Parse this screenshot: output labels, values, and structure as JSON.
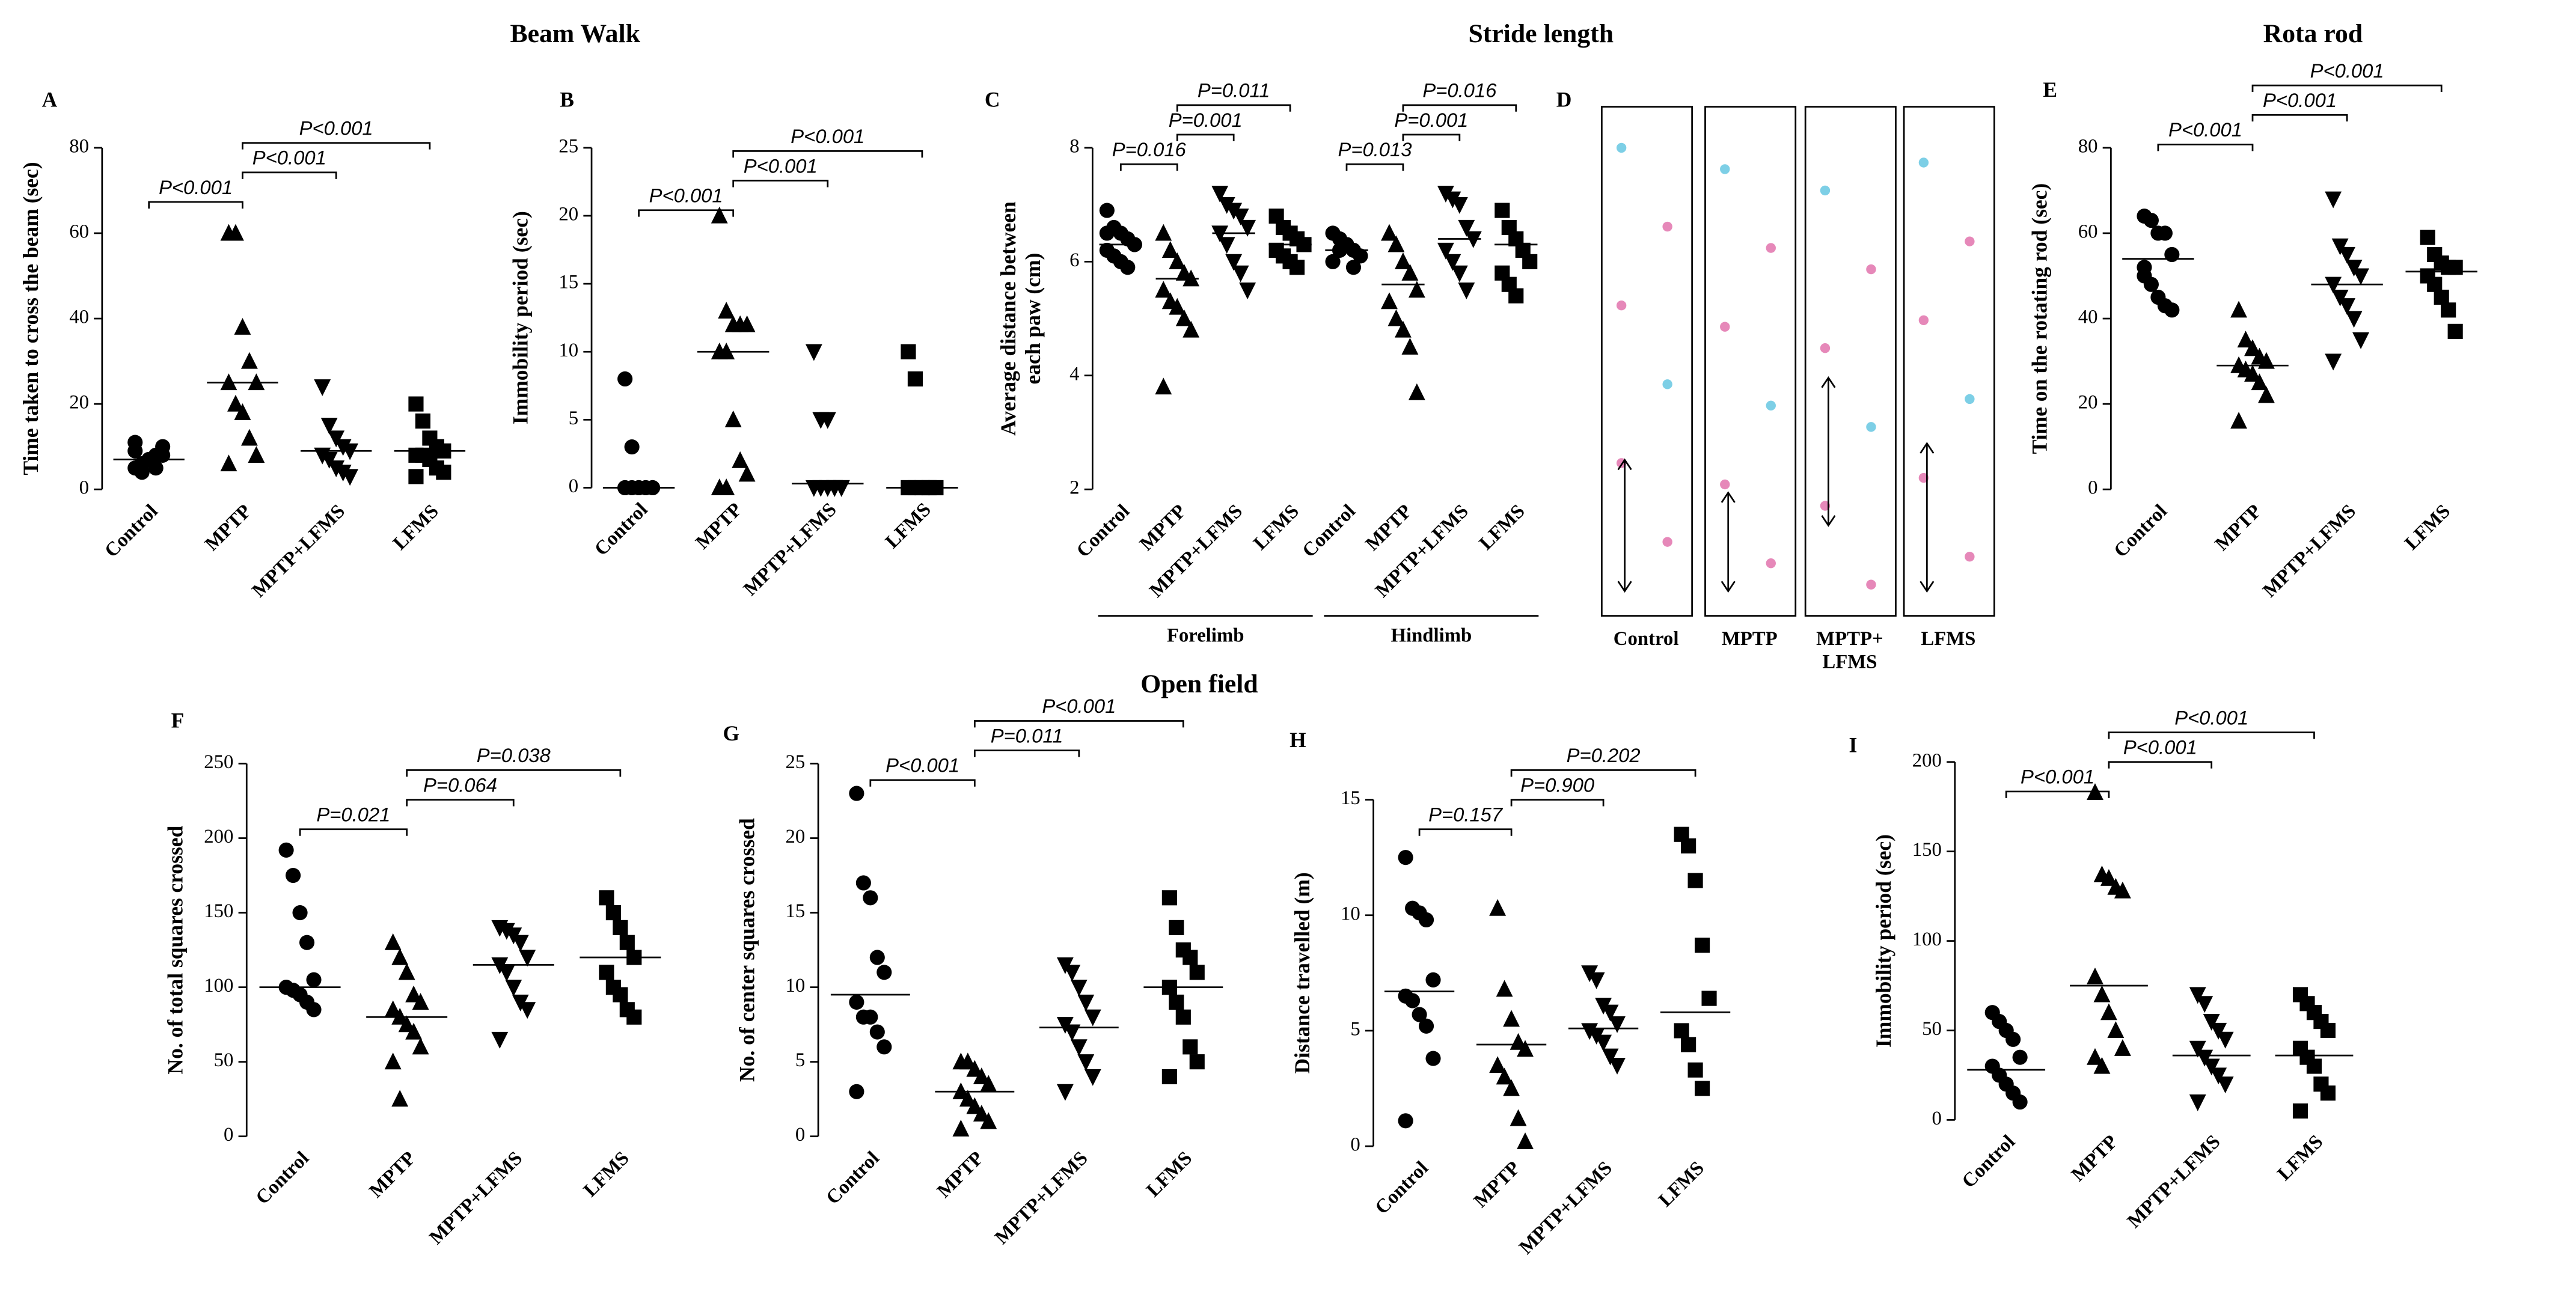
{
  "sections": [
    "Beam Walk",
    "Stride length",
    "Rota rod",
    "Open field"
  ],
  "footprints": {
    "panel": "D",
    "lanes": [
      [
        "Control"
      ],
      [
        "MPTP"
      ],
      [
        "MPTP+",
        "LFMS"
      ],
      [
        "LFMS"
      ]
    ]
  },
  "chart_data": [
    {
      "type": "dot",
      "panel": "A",
      "ylabel": [
        "Time taken to cross the beam (sec)"
      ],
      "categories": [
        "Control",
        "MPTP",
        "MPTP+LFMS",
        "LFMS"
      ],
      "markers": [
        "circle",
        "triangle",
        "triangle-down",
        "square"
      ],
      "ylim": [
        0,
        80
      ],
      "yticks": [
        0,
        20,
        40,
        60,
        80
      ],
      "points": [
        [
          5,
          6,
          7,
          8,
          10,
          9,
          6,
          7,
          5,
          8,
          11,
          4
        ],
        [
          60,
          60,
          38,
          30,
          25,
          25,
          20,
          18,
          12,
          8,
          6
        ],
        [
          24,
          15,
          12,
          10,
          9,
          8,
          7,
          5,
          4,
          3
        ],
        [
          20,
          16,
          12,
          10,
          9,
          8,
          8,
          7,
          5,
          4,
          3
        ]
      ],
      "means": [
        7,
        25,
        9,
        9
      ],
      "comparisons": [
        {
          "between": [
            0,
            1
          ],
          "label": "P<0.001"
        },
        {
          "between": [
            1,
            2
          ],
          "label": "P<0.001"
        },
        {
          "between": [
            1,
            3
          ],
          "label": "P<0.001"
        }
      ]
    },
    {
      "type": "dot",
      "panel": "B",
      "ylabel": [
        "Immobility period (sec)"
      ],
      "categories": [
        "Control",
        "MPTP",
        "MPTP+LFMS",
        "LFMS"
      ],
      "markers": [
        "circle",
        "triangle",
        "triangle-down",
        "square"
      ],
      "ylim": [
        0,
        25
      ],
      "yticks": [
        0,
        5,
        10,
        15,
        20,
        25
      ],
      "points": [
        [
          8,
          3,
          0,
          0,
          0,
          0,
          0,
          0,
          0,
          0,
          0
        ],
        [
          20,
          13,
          12,
          12,
          12,
          10,
          10,
          5,
          2,
          1,
          0,
          0
        ],
        [
          10,
          5,
          5,
          0,
          0,
          0,
          0,
          0,
          0,
          0
        ],
        [
          10,
          8,
          0,
          0,
          0,
          0,
          0,
          0,
          0,
          0,
          0
        ]
      ],
      "means": [
        0,
        10,
        0.3,
        0
      ],
      "comparisons": [
        {
          "between": [
            0,
            1
          ],
          "label": "P<0.001"
        },
        {
          "between": [
            1,
            2
          ],
          "label": "P<0.001"
        },
        {
          "between": [
            1,
            3
          ],
          "label": "P<0.001"
        }
      ]
    },
    {
      "type": "dot",
      "panel": "C",
      "ylabel": [
        "Average distance between",
        "each paw (cm)"
      ],
      "categories": [
        "Control",
        "MPTP",
        "MPTP+LFMS",
        "LFMS",
        "Control",
        "MPTP",
        "MPTP+LFMS",
        "LFMS"
      ],
      "category_groups": [
        "Forelimb",
        "Hindlimb"
      ],
      "markers": [
        "circle",
        "triangle",
        "triangle-down",
        "square",
        "circle",
        "triangle",
        "triangle-down",
        "square"
      ],
      "ylim": [
        2,
        8
      ],
      "yticks": [
        2,
        4,
        6,
        8
      ],
      "points": [
        [
          6.9,
          6.6,
          6.5,
          6.4,
          6.3,
          6.2,
          6.1,
          6.0,
          5.9,
          6.3,
          6.5
        ],
        [
          6.5,
          6.2,
          6.0,
          5.8,
          5.7,
          5.5,
          5.3,
          5.2,
          5.0,
          4.8,
          3.8
        ],
        [
          7.2,
          7.0,
          6.9,
          6.8,
          6.6,
          6.5,
          6.3,
          6.0,
          5.8,
          5.5
        ],
        [
          6.8,
          6.6,
          6.5,
          6.4,
          6.3,
          6.2,
          6.1,
          6.0,
          5.9
        ],
        [
          6.5,
          6.4,
          6.3,
          6.2,
          6.1,
          6.0,
          6.2,
          6.3,
          5.9
        ],
        [
          6.5,
          6.3,
          6.0,
          5.8,
          5.5,
          5.3,
          5.0,
          4.8,
          4.5,
          3.7
        ],
        [
          7.2,
          7.1,
          7.0,
          6.6,
          6.4,
          6.2,
          6.0,
          5.8,
          5.5
        ],
        [
          6.9,
          6.6,
          6.4,
          6.2,
          6.0,
          5.8,
          5.6,
          5.4
        ]
      ],
      "means": [
        6.3,
        5.7,
        6.5,
        6.3,
        6.2,
        5.6,
        6.4,
        6.3
      ],
      "comparisons": [
        {
          "between": [
            0,
            1
          ],
          "label": "P=0.016"
        },
        {
          "between": [
            1,
            2
          ],
          "label": "P=0.001"
        },
        {
          "between": [
            1,
            3
          ],
          "label": "P=0.011"
        },
        {
          "between": [
            4,
            5
          ],
          "label": "P=0.013"
        },
        {
          "between": [
            5,
            6
          ],
          "label": "P=0.001"
        },
        {
          "between": [
            5,
            7
          ],
          "label": "P=0.016"
        }
      ]
    },
    {
      "type": "dot",
      "panel": "E",
      "ylabel": [
        "Time on the rotating rod (sec)"
      ],
      "categories": [
        "Control",
        "MPTP",
        "MPTP+LFMS",
        "LFMS"
      ],
      "markers": [
        "circle",
        "triangle",
        "triangle-down",
        "square"
      ],
      "ylim": [
        0,
        80
      ],
      "yticks": [
        0,
        20,
        40,
        60,
        80
      ],
      "points": [
        [
          64,
          63,
          60,
          60,
          55,
          50,
          48,
          45,
          43,
          42,
          52
        ],
        [
          42,
          35,
          33,
          31,
          30,
          29,
          28,
          27,
          25,
          22,
          16
        ],
        [
          68,
          57,
          55,
          52,
          50,
          48,
          45,
          43,
          40,
          35,
          30
        ],
        [
          59,
          55,
          53,
          52,
          52,
          50,
          48,
          45,
          42,
          37
        ]
      ],
      "means": [
        54,
        29,
        48,
        51
      ],
      "comparisons": [
        {
          "between": [
            0,
            1
          ],
          "label": "P<0.001"
        },
        {
          "between": [
            1,
            2
          ],
          "label": "P<0.001"
        },
        {
          "between": [
            1,
            3
          ],
          "label": "P<0.001"
        }
      ]
    },
    {
      "type": "dot",
      "panel": "F",
      "ylabel": [
        "No. of total squares crossed"
      ],
      "categories": [
        "Control",
        "MPTP",
        "MPTP+LFMS",
        "LFMS"
      ],
      "markers": [
        "circle",
        "triangle",
        "triangle-down",
        "square"
      ],
      "ylim": [
        0,
        250
      ],
      "yticks": [
        0,
        50,
        100,
        150,
        200,
        250
      ],
      "points": [
        [
          192,
          175,
          150,
          130,
          105,
          100,
          98,
          95,
          90,
          85
        ],
        [
          130,
          120,
          110,
          95,
          90,
          85,
          80,
          75,
          70,
          60,
          50,
          25
        ],
        [
          140,
          138,
          135,
          130,
          120,
          115,
          110,
          100,
          90,
          85,
          65
        ],
        [
          160,
          150,
          140,
          130,
          120,
          110,
          100,
          95,
          85,
          80
        ]
      ],
      "means": [
        100,
        80,
        115,
        120
      ],
      "comparisons": [
        {
          "between": [
            0,
            1
          ],
          "label": "P=0.021"
        },
        {
          "between": [
            1,
            2
          ],
          "label": "P=0.064"
        },
        {
          "between": [
            1,
            3
          ],
          "label": "P=0.038"
        }
      ]
    },
    {
      "type": "dot",
      "panel": "G",
      "ylabel": [
        "No. of center squares crossed"
      ],
      "categories": [
        "Control",
        "MPTP",
        "MPTP+LFMS",
        "LFMS"
      ],
      "markers": [
        "circle",
        "triangle",
        "triangle-down",
        "square"
      ],
      "ylim": [
        0,
        25
      ],
      "yticks": [
        0,
        5,
        10,
        15,
        20,
        25
      ],
      "points": [
        [
          23,
          17,
          16,
          12,
          11,
          9,
          8,
          8,
          7,
          6,
          3
        ],
        [
          5,
          5,
          4.5,
          4,
          3.5,
          3,
          2.5,
          2,
          1.5,
          1,
          0.5
        ],
        [
          11.5,
          11,
          10,
          9,
          8,
          7.5,
          7,
          6,
          5,
          4,
          3
        ],
        [
          16,
          14,
          12.5,
          12,
          11,
          10,
          9,
          8,
          6,
          5,
          4
        ]
      ],
      "means": [
        9.5,
        3,
        7.3,
        10
      ],
      "comparisons": [
        {
          "between": [
            0,
            1
          ],
          "label": "P<0.001"
        },
        {
          "between": [
            1,
            2
          ],
          "label": "P=0.011"
        },
        {
          "between": [
            1,
            3
          ],
          "label": "P<0.001"
        }
      ]
    },
    {
      "type": "dot",
      "panel": "H",
      "ylabel": [
        "Distance travelled (m)"
      ],
      "categories": [
        "Control",
        "MPTP",
        "MPTP+LFMS",
        "LFMS"
      ],
      "markers": [
        "circle",
        "triangle",
        "triangle-down",
        "square"
      ],
      "ylim": [
        0,
        15
      ],
      "yticks": [
        0,
        5,
        10,
        15
      ],
      "points": [
        [
          12.5,
          10.3,
          10.1,
          9.8,
          7.2,
          6.5,
          6.3,
          5.7,
          5.2,
          3.8,
          1.1
        ],
        [
          10.3,
          6.8,
          5.5,
          4.5,
          4.2,
          3.5,
          3.0,
          2.5,
          1.2,
          0.2
        ],
        [
          7.5,
          7.2,
          6.1,
          5.8,
          5.3,
          5.0,
          4.8,
          4.5,
          3.9,
          3.5
        ],
        [
          13.5,
          13,
          11.5,
          8.7,
          6.4,
          5.0,
          4.4,
          3.3,
          2.5
        ]
      ],
      "means": [
        6.7,
        4.4,
        5.1,
        5.8
      ],
      "comparisons": [
        {
          "between": [
            0,
            1
          ],
          "label": "P=0.157"
        },
        {
          "between": [
            1,
            2
          ],
          "label": "P=0.900"
        },
        {
          "between": [
            1,
            3
          ],
          "label": "P=0.202"
        }
      ]
    },
    {
      "type": "dot",
      "panel": "I",
      "ylabel": [
        "Immobility period (sec)"
      ],
      "categories": [
        "Control",
        "MPTP",
        "MPTP+LFMS",
        "LFMS"
      ],
      "markers": [
        "circle",
        "triangle",
        "triangle-down",
        "square"
      ],
      "ylim": [
        0,
        200
      ],
      "yticks": [
        0,
        50,
        100,
        150,
        200
      ],
      "points": [
        [
          60,
          55,
          50,
          45,
          35,
          30,
          25,
          20,
          15,
          10
        ],
        [
          183,
          137,
          135,
          130,
          128,
          80,
          70,
          60,
          50,
          40,
          35,
          30
        ],
        [
          70,
          65,
          55,
          50,
          45,
          40,
          35,
          30,
          25,
          20,
          10
        ],
        [
          70,
          65,
          60,
          55,
          50,
          40,
          35,
          30,
          20,
          15,
          5
        ]
      ],
      "means": [
        28,
        75,
        36,
        36
      ],
      "comparisons": [
        {
          "between": [
            0,
            1
          ],
          "label": "P<0.001"
        },
        {
          "between": [
            1,
            2
          ],
          "label": "P<0.001"
        },
        {
          "between": [
            1,
            3
          ],
          "label": "P<0.001"
        }
      ]
    }
  ]
}
